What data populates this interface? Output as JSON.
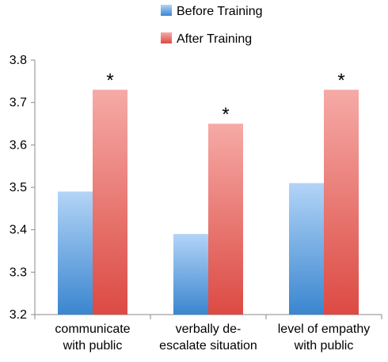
{
  "chart_data": {
    "type": "bar",
    "categories": [
      [
        "communicate",
        "with public"
      ],
      [
        "verbally de-",
        "escalate situation"
      ],
      [
        "level of empathy",
        "with public"
      ]
    ],
    "series": [
      {
        "name": "Before Training",
        "values": [
          3.49,
          3.39,
          3.51
        ],
        "color": "#5b9bd5"
      },
      {
        "name": "After Training",
        "values": [
          3.73,
          3.65,
          3.73
        ],
        "color": "#e8544e"
      }
    ],
    "annotations": [
      {
        "category_index": 0,
        "series_index": 1,
        "text": "*"
      },
      {
        "category_index": 1,
        "series_index": 1,
        "text": "*"
      },
      {
        "category_index": 2,
        "series_index": 1,
        "text": "*"
      }
    ],
    "y_ticks": [
      "3.2",
      "3.3",
      "3.4",
      "3.5",
      "3.6",
      "3.7",
      "3.8"
    ],
    "ylim": [
      3.2,
      3.8
    ],
    "legend_position": "top",
    "grid": false
  }
}
